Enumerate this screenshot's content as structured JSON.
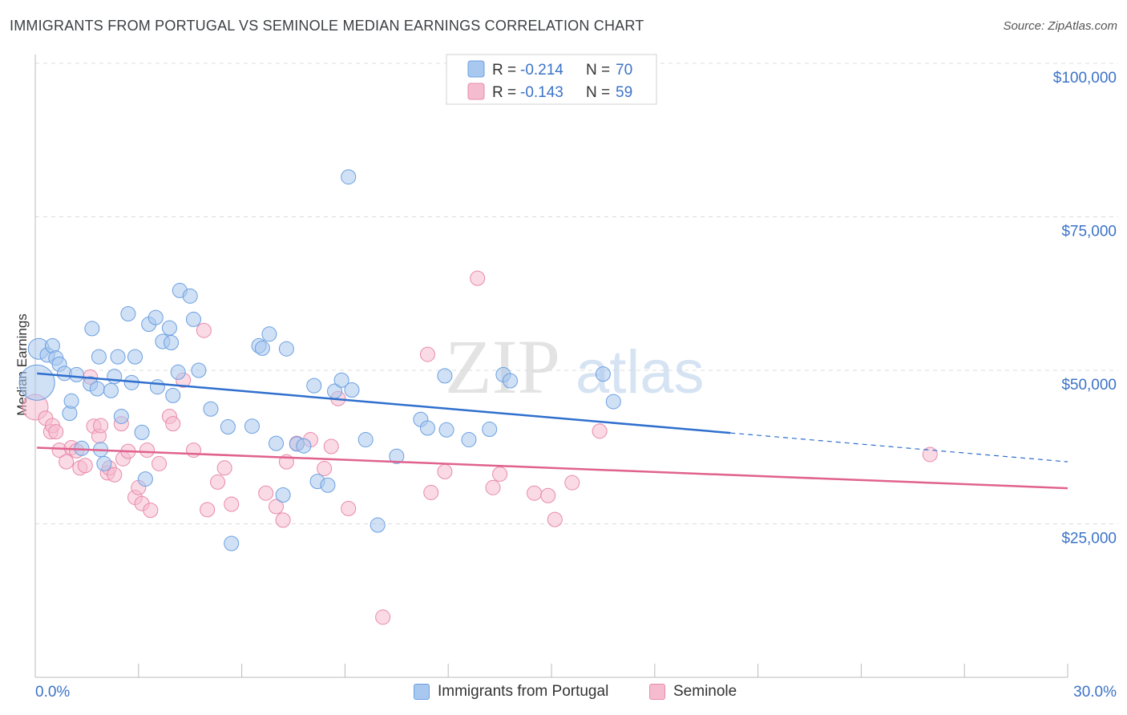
{
  "title": "IMMIGRANTS FROM PORTUGAL VS SEMINOLE MEDIAN EARNINGS CORRELATION CHART",
  "source": "Source: ZipAtlas.com",
  "watermark": {
    "zip": "ZIP",
    "atlas": "atlas"
  },
  "legend_top": [
    {
      "r_label": "R =",
      "r_value": "-0.214",
      "n_label": "N =",
      "n_value": "70"
    },
    {
      "r_label": "R =",
      "r_value": "-0.143",
      "n_label": "N =",
      "n_value": "59"
    }
  ],
  "colors": {
    "blue_fill": "#a9c8ef",
    "blue_stroke": "#6b9fe0",
    "blue_line": "#2f6fcd",
    "pink_fill": "#f5bcd0",
    "pink_stroke": "#e88aab",
    "pink_line": "#e0628e",
    "axis_value": "#3b73c8"
  },
  "chart_data": {
    "type": "scatter",
    "title": "IMMIGRANTS FROM PORTUGAL VS SEMINOLE MEDIAN EARNINGS CORRELATION CHART",
    "xlabel": "",
    "ylabel": "Median Earnings",
    "xlim": [
      0,
      30
    ],
    "ylim": [
      0,
      105000
    ],
    "x_tick_labels": [
      "0.0%",
      "30.0%"
    ],
    "y_ticks": [
      25000,
      50000,
      75000,
      100000
    ],
    "y_tick_labels": [
      "$25,000",
      "$50,000",
      "$75,000",
      "$100,000"
    ],
    "grid": true,
    "legend_position": "top-center and bottom",
    "series": [
      {
        "name": "Immigrants from Portugal",
        "color": "blue",
        "r": -0.214,
        "n": 70,
        "trend": {
          "x0": 0.05,
          "y0": 49500,
          "x1": 20.2,
          "y1": 39800,
          "dash_to_x": 30,
          "dash_to_y": 35100
        },
        "points": [
          [
            0.05,
            48000,
            22
          ],
          [
            0.1,
            53500,
            13
          ],
          [
            0.35,
            52500,
            9
          ],
          [
            0.5,
            54000,
            9
          ],
          [
            0.6,
            52000,
            9
          ],
          [
            0.7,
            51000,
            9
          ],
          [
            0.85,
            49500,
            9
          ],
          [
            1.0,
            43000,
            9
          ],
          [
            1.05,
            45000,
            9
          ],
          [
            1.2,
            49300,
            9
          ],
          [
            1.35,
            37300,
            9
          ],
          [
            1.6,
            47800,
            9
          ],
          [
            1.65,
            56800,
            9
          ],
          [
            1.8,
            47000,
            9
          ],
          [
            1.85,
            52200,
            9
          ],
          [
            1.9,
            37100,
            9
          ],
          [
            2.0,
            34800,
            9
          ],
          [
            2.2,
            46700,
            9
          ],
          [
            2.3,
            49000,
            9
          ],
          [
            2.4,
            52200,
            9
          ],
          [
            2.5,
            42500,
            9
          ],
          [
            2.7,
            59200,
            9
          ],
          [
            2.8,
            48000,
            9
          ],
          [
            2.9,
            52200,
            9
          ],
          [
            3.1,
            39900,
            9
          ],
          [
            3.2,
            32300,
            9
          ],
          [
            3.3,
            57500,
            9
          ],
          [
            3.5,
            58600,
            9
          ],
          [
            3.55,
            47300,
            9
          ],
          [
            3.7,
            54700,
            9
          ],
          [
            3.9,
            56900,
            9
          ],
          [
            3.95,
            54500,
            9
          ],
          [
            4.0,
            45900,
            9
          ],
          [
            4.15,
            49700,
            9
          ],
          [
            4.2,
            63000,
            9
          ],
          [
            4.5,
            62100,
            9
          ],
          [
            4.6,
            58300,
            9
          ],
          [
            4.75,
            50000,
            9
          ],
          [
            5.1,
            43700,
            9
          ],
          [
            5.6,
            40800,
            9
          ],
          [
            5.7,
            21800,
            9
          ],
          [
            6.3,
            40900,
            9
          ],
          [
            6.5,
            54000,
            9
          ],
          [
            6.6,
            53600,
            9
          ],
          [
            6.8,
            55900,
            9
          ],
          [
            7.0,
            38100,
            9
          ],
          [
            7.2,
            29700,
            9
          ],
          [
            7.3,
            53500,
            9
          ],
          [
            7.6,
            38000,
            9
          ],
          [
            7.8,
            37700,
            9
          ],
          [
            8.1,
            47500,
            9
          ],
          [
            8.2,
            31900,
            9
          ],
          [
            8.5,
            31300,
            9
          ],
          [
            8.7,
            46600,
            9
          ],
          [
            8.9,
            48400,
            9
          ],
          [
            9.2,
            46800,
            9
          ],
          [
            9.1,
            81500,
            9
          ],
          [
            9.6,
            38700,
            9
          ],
          [
            9.95,
            24800,
            9
          ],
          [
            10.5,
            36000,
            9
          ],
          [
            11.2,
            42000,
            9
          ],
          [
            11.4,
            40600,
            9
          ],
          [
            11.9,
            49100,
            9
          ],
          [
            11.95,
            40300,
            9
          ],
          [
            12.6,
            38700,
            9
          ],
          [
            13.2,
            40400,
            9
          ],
          [
            13.6,
            49300,
            9
          ],
          [
            13.8,
            48300,
            9
          ],
          [
            16.5,
            49400,
            9
          ],
          [
            16.8,
            44900,
            9
          ]
        ]
      },
      {
        "name": "Seminole",
        "color": "pink",
        "r": -0.143,
        "n": 59,
        "trend": {
          "x0": 0.05,
          "y0": 37400,
          "x1": 30,
          "y1": 30800
        },
        "points": [
          [
            0.0,
            44000,
            16
          ],
          [
            0.3,
            42200,
            9
          ],
          [
            0.45,
            40000,
            9
          ],
          [
            0.5,
            41000,
            9
          ],
          [
            0.6,
            40000,
            9
          ],
          [
            0.7,
            37000,
            9
          ],
          [
            0.9,
            35100,
            9
          ],
          [
            1.05,
            37400,
            9
          ],
          [
            1.2,
            36900,
            9
          ],
          [
            1.3,
            34100,
            9
          ],
          [
            1.45,
            34500,
            9
          ],
          [
            1.6,
            48900,
            9
          ],
          [
            1.7,
            40900,
            9
          ],
          [
            1.85,
            39300,
            9
          ],
          [
            1.9,
            41000,
            9
          ],
          [
            2.1,
            33300,
            9
          ],
          [
            2.15,
            34100,
            9
          ],
          [
            2.3,
            33000,
            9
          ],
          [
            2.5,
            41300,
            9
          ],
          [
            2.55,
            35600,
            9
          ],
          [
            2.7,
            36800,
            9
          ],
          [
            2.9,
            29300,
            9
          ],
          [
            3.0,
            30900,
            9
          ],
          [
            3.1,
            28300,
            9
          ],
          [
            3.25,
            37000,
            9
          ],
          [
            3.35,
            27200,
            9
          ],
          [
            3.6,
            34800,
            9
          ],
          [
            3.9,
            42500,
            9
          ],
          [
            4.0,
            41300,
            9
          ],
          [
            4.3,
            48400,
            9
          ],
          [
            4.6,
            37000,
            9
          ],
          [
            4.9,
            56500,
            9
          ],
          [
            5.0,
            27300,
            9
          ],
          [
            5.3,
            31800,
            9
          ],
          [
            5.5,
            34100,
            9
          ],
          [
            5.7,
            28200,
            9
          ],
          [
            6.7,
            30000,
            9
          ],
          [
            7.0,
            27800,
            9
          ],
          [
            7.2,
            25600,
            9
          ],
          [
            7.3,
            35100,
            9
          ],
          [
            7.6,
            38100,
            9
          ],
          [
            8.0,
            38700,
            9
          ],
          [
            8.4,
            34000,
            9
          ],
          [
            8.6,
            37600,
            9
          ],
          [
            8.8,
            45400,
            9
          ],
          [
            9.1,
            27500,
            9
          ],
          [
            10.1,
            9800,
            9
          ],
          [
            11.4,
            52600,
            9
          ],
          [
            11.5,
            30100,
            9
          ],
          [
            11.9,
            33500,
            9
          ],
          [
            12.85,
            65000,
            9
          ],
          [
            13.3,
            30900,
            9
          ],
          [
            13.5,
            33100,
            9
          ],
          [
            14.5,
            30000,
            9
          ],
          [
            14.9,
            29600,
            9
          ],
          [
            15.1,
            25700,
            9
          ],
          [
            15.6,
            31700,
            9
          ],
          [
            16.4,
            40100,
            9
          ],
          [
            26.0,
            36300,
            9
          ]
        ]
      }
    ]
  }
}
